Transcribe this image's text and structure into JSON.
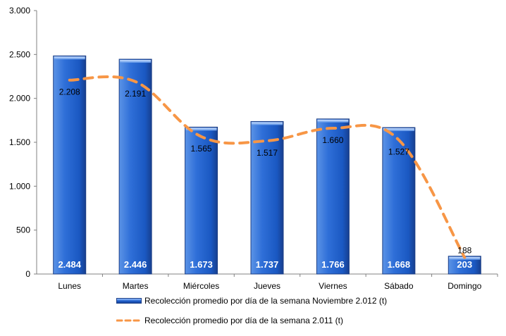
{
  "chart_data": {
    "type": "bar",
    "categories": [
      "Lunes",
      "Martes",
      "Miércoles",
      "Jueves",
      "Viernes",
      "Sábado",
      "Domingo"
    ],
    "ylim": [
      0,
      3000
    ],
    "yticks": [
      0,
      500,
      1000,
      1500,
      2000,
      2500,
      3000
    ],
    "ytick_labels": [
      "0",
      "500",
      "1.000",
      "1.500",
      "2.000",
      "2.500",
      "3.000"
    ],
    "grid": false,
    "legend_position": "bottom",
    "series": [
      {
        "name": "Recolección promedio por día de la semana Noviembre 2.012 (t)",
        "type": "bar",
        "values": [
          2484,
          2446,
          1673,
          1737,
          1766,
          1668,
          203
        ],
        "labels": [
          "2.484",
          "2.446",
          "1.673",
          "1.737",
          "1.766",
          "1.668",
          "203"
        ],
        "color": "#1f5fcc"
      },
      {
        "name": "Recolección promedio por día de la semana 2.011 (t)",
        "type": "line",
        "style": "dashed",
        "values": [
          2208,
          2191,
          1565,
          1517,
          1660,
          1527,
          188
        ],
        "labels": [
          "2.208",
          "2.191",
          "1.565",
          "1.517",
          "1.660",
          "1.527",
          "188"
        ],
        "color": "#f79646"
      }
    ]
  }
}
